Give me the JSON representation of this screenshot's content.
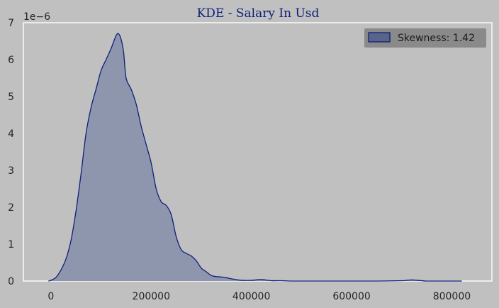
{
  "chart_data": {
    "type": "area",
    "title": "KDE - Salary In Usd",
    "xlabel": "",
    "ylabel": "",
    "y_scale_label": "1e−6",
    "xlim": [
      -55000,
      880000
    ],
    "ylim": [
      0,
      7
    ],
    "x_ticks": [
      0,
      200000,
      400000,
      600000,
      800000
    ],
    "x_tick_labels": [
      "0",
      "200000",
      "400000",
      "600000",
      "800000"
    ],
    "y_ticks": [
      0,
      1,
      2,
      3,
      4,
      5,
      6,
      7
    ],
    "y_tick_labels": [
      "0",
      "1",
      "2",
      "3",
      "4",
      "5",
      "6",
      "7"
    ],
    "grid": false,
    "legend": {
      "placement": "top-right",
      "label": "Skewness: 1.42"
    },
    "colors": {
      "fill": "#8e96ae",
      "line": "#0e1f7a",
      "background": "#c0c0c0",
      "legend_bg": "#8a8a8a"
    },
    "series": [
      {
        "name": "Skewness: 1.42",
        "x": [
          -5000,
          0,
          10000,
          20000,
          30000,
          40000,
          50000,
          60000,
          70000,
          80000,
          90000,
          100000,
          110000,
          120000,
          130000,
          135000,
          140000,
          145000,
          150000,
          160000,
          170000,
          180000,
          190000,
          200000,
          210000,
          220000,
          230000,
          240000,
          250000,
          260000,
          270000,
          280000,
          290000,
          300000,
          310000,
          320000,
          330000,
          340000,
          350000,
          360000,
          380000,
          400000,
          420000,
          440000,
          460000,
          480000,
          500000,
          550000,
          600000,
          650000,
          700000,
          710000,
          720000,
          730000,
          740000,
          750000,
          780000,
          820000
        ],
        "y": [
          0.0,
          0.02,
          0.1,
          0.3,
          0.6,
          1.1,
          1.9,
          2.9,
          4.0,
          4.7,
          5.2,
          5.7,
          6.0,
          6.3,
          6.65,
          6.7,
          6.55,
          6.2,
          5.5,
          5.2,
          4.8,
          4.2,
          3.7,
          3.2,
          2.5,
          2.15,
          2.05,
          1.8,
          1.2,
          0.85,
          0.75,
          0.68,
          0.55,
          0.35,
          0.25,
          0.15,
          0.12,
          0.11,
          0.09,
          0.06,
          0.02,
          0.02,
          0.04,
          0.01,
          0.01,
          0.0,
          0.0,
          0.0,
          0.0,
          0.0,
          0.01,
          0.02,
          0.03,
          0.02,
          0.01,
          0.0,
          0.0,
          0.0
        ]
      }
    ]
  }
}
